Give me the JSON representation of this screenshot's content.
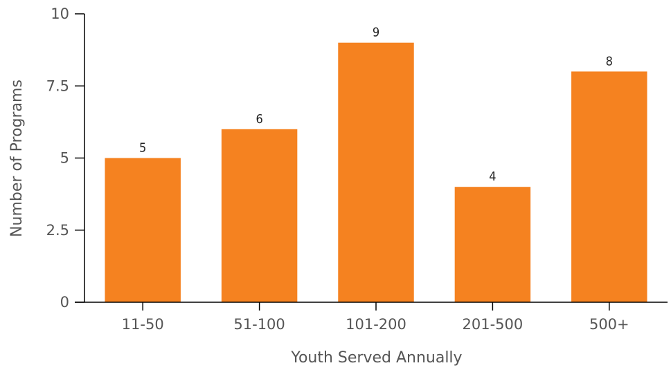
{
  "chart_data": {
    "type": "bar",
    "categories": [
      "11-50",
      "51-100",
      "101-200",
      "201-500",
      "500+"
    ],
    "values": [
      5,
      6,
      9,
      4,
      8
    ],
    "data_labels": [
      "5",
      "6",
      "9",
      "4",
      "8"
    ],
    "title": "",
    "xlabel": "Youth Served Annually",
    "ylabel": "Number of Programs",
    "ylim": [
      0,
      10
    ],
    "yticks": [
      0,
      2.5,
      5,
      7.5,
      10
    ],
    "ytick_labels": [
      "0",
      "2.5",
      "5",
      "7.5",
      "10"
    ],
    "grid": false,
    "legend": "none",
    "colors": {
      "bar": "#f58220",
      "axis": "#000000",
      "text": "#555555"
    }
  }
}
